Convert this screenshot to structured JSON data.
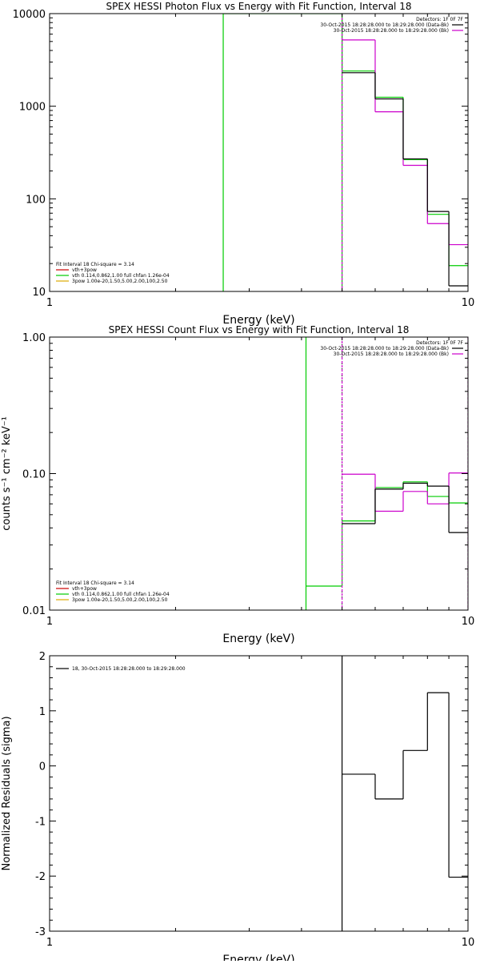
{
  "chart_data": [
    {
      "type": "line",
      "title": "SPEX HESSI Photon Flux vs Energy with Fit Function, Interval 18",
      "xlabel": "Energy (keV)",
      "ylabel": "",
      "xscale": "log",
      "yscale": "log",
      "xlim": [
        1,
        10
      ],
      "ylim": [
        10,
        10000
      ],
      "xticks": [
        {
          "v": 1,
          "label": "1"
        },
        {
          "v": 10,
          "label": "10"
        }
      ],
      "yticks": [
        {
          "v": 10,
          "label": "10"
        },
        {
          "v": 100,
          "label": "100"
        },
        {
          "v": 1000,
          "label": "1000"
        },
        {
          "v": 10000,
          "label": "10000"
        }
      ],
      "header_lines": [
        {
          "text": "Detectors: 1F 0F 7F",
          "color": ""
        },
        {
          "text": "30-Oct-2015 18:28:28.000 to 18:29:28.000 (Data-Bk)",
          "color": "#000000"
        },
        {
          "text": "30-Oct-2015 18:28:28.000 to 18:29:28.000 (Bk)",
          "color": "#cc00cc"
        }
      ],
      "legend_lines": [
        {
          "text": "Fit Interval 18   Chi-square = 3.14",
          "color": ""
        },
        {
          "text": "vth+3pow",
          "color": "#cc0000"
        },
        {
          "text": "vth 0.114,0.862,1.00  full chfan 1.26e-04",
          "color": "#00cc00"
        },
        {
          "text": "3pow 1.00e-20,1.50,5.00,2.00,100,2.50",
          "color": "#ddaa00"
        }
      ],
      "legend_position": "bottom-left",
      "series": [
        {
          "color": "#00cc00",
          "verticals": [
            2.6,
            5.0
          ],
          "bins": [
            {
              "x0": 2.6,
              "x1": 4.1,
              "y": 10000
            },
            {
              "x0": 4.1,
              "x1": 5.0,
              "y": 10000
            },
            {
              "x0": 5.0,
              "x1": 6.0,
              "y": 2400
            },
            {
              "x0": 6.0,
              "x1": 7.0,
              "y": 1250
            },
            {
              "x0": 7.0,
              "x1": 8.0,
              "y": 265
            },
            {
              "x0": 8.0,
              "x1": 9.0,
              "y": 68
            },
            {
              "x0": 9.0,
              "x1": 10.0,
              "y": 19
            }
          ]
        },
        {
          "color": "#cc00cc",
          "verticals": [
            5.0
          ],
          "bins": [
            {
              "x0": 5.0,
              "x1": 6.0,
              "y": 5200
            },
            {
              "x0": 6.0,
              "x1": 7.0,
              "y": 870
            },
            {
              "x0": 7.0,
              "x1": 8.0,
              "y": 230
            },
            {
              "x0": 8.0,
              "x1": 9.0,
              "y": 54
            },
            {
              "x0": 9.0,
              "x1": 10.0,
              "y": 32
            }
          ]
        },
        {
          "color": "#000000",
          "bins": [
            {
              "x0": 5.0,
              "x1": 6.0,
              "y": 2300
            },
            {
              "x0": 6.0,
              "x1": 7.0,
              "y": 1200
            },
            {
              "x0": 7.0,
              "x1": 8.0,
              "y": 270
            },
            {
              "x0": 8.0,
              "x1": 9.0,
              "y": 73
            },
            {
              "x0": 9.0,
              "x1": 10.0,
              "y": 11.5
            }
          ]
        }
      ],
      "dotted_vlines": []
    },
    {
      "type": "line",
      "title": "SPEX HESSI Count Flux vs Energy with Fit Function, Interval 18",
      "xlabel": "Energy (keV)",
      "ylabel": "counts s⁻¹ cm⁻² keV⁻¹",
      "xscale": "log",
      "yscale": "log",
      "xlim": [
        1,
        10
      ],
      "ylim": [
        0.01,
        1.0
      ],
      "xticks": [
        {
          "v": 1,
          "label": "1"
        },
        {
          "v": 10,
          "label": "10"
        }
      ],
      "yticks": [
        {
          "v": 0.01,
          "label": "0.01"
        },
        {
          "v": 0.1,
          "label": "0.10"
        },
        {
          "v": 1.0,
          "label": "1.00"
        }
      ],
      "header_lines": [
        {
          "text": "Detectors: 1F 0F 7F",
          "color": ""
        },
        {
          "text": "30-Oct-2015 18:28:28.000 to 18:29:28.000 (Data-Bk)",
          "color": "#000000"
        },
        {
          "text": "30-Oct-2015 18:28:28.000 to 18:29:28.000 (Bk)",
          "color": "#cc00cc"
        }
      ],
      "legend_lines": [
        {
          "text": "Fit Interval 18   Chi-square = 3.14",
          "color": ""
        },
        {
          "text": "vth+3pow",
          "color": "#cc0000"
        },
        {
          "text": "vth 0.114,0.862,1.00  full chfan 1.26e-04",
          "color": "#00cc00"
        },
        {
          "text": "3pow 1.00e-20,1.50,5.00,2.00,100,2.50",
          "color": "#ddaa00"
        }
      ],
      "legend_position": "bottom-left",
      "series": [
        {
          "color": "#00cc00",
          "verticals": [
            4.1
          ],
          "bins": [
            {
              "x0": 4.1,
              "x1": 5.0,
              "y": 0.015
            },
            {
              "x0": 5.0,
              "x1": 6.0,
              "y": 0.045
            },
            {
              "x0": 6.0,
              "x1": 7.0,
              "y": 0.079
            },
            {
              "x0": 7.0,
              "x1": 8.0,
              "y": 0.087
            },
            {
              "x0": 8.0,
              "x1": 9.0,
              "y": 0.068
            },
            {
              "x0": 9.0,
              "x1": 10.0,
              "y": 0.061
            }
          ]
        },
        {
          "color": "#cc00cc",
          "verticals": [
            5.0,
            10.0
          ],
          "bins": [
            {
              "x0": 5.0,
              "x1": 6.0,
              "y": 0.099
            },
            {
              "x0": 6.0,
              "x1": 7.0,
              "y": 0.053
            },
            {
              "x0": 7.0,
              "x1": 8.0,
              "y": 0.074
            },
            {
              "x0": 8.0,
              "x1": 9.0,
              "y": 0.06
            },
            {
              "x0": 9.0,
              "x1": 10.0,
              "y": 0.101
            }
          ]
        },
        {
          "color": "#000000",
          "bins": [
            {
              "x0": 5.0,
              "x1": 6.0,
              "y": 0.043
            },
            {
              "x0": 6.0,
              "x1": 7.0,
              "y": 0.077
            },
            {
              "x0": 7.0,
              "x1": 8.0,
              "y": 0.085
            },
            {
              "x0": 8.0,
              "x1": 9.0,
              "y": 0.081
            },
            {
              "x0": 9.0,
              "x1": 10.0,
              "y": 0.037
            }
          ]
        }
      ],
      "dotted_vlines": [
        5.0
      ]
    },
    {
      "type": "line",
      "title": "",
      "xlabel": "Energy (keV)",
      "ylabel": "Normalized Residuals (sigma)",
      "xscale": "log",
      "yscale": "linear",
      "xlim": [
        1,
        10
      ],
      "ylim": [
        -3,
        2
      ],
      "xticks": [
        {
          "v": 1,
          "label": "1"
        },
        {
          "v": 10,
          "label": "10"
        }
      ],
      "yticks": [
        {
          "v": -3,
          "label": "-3"
        },
        {
          "v": -2,
          "label": "-2"
        },
        {
          "v": -1,
          "label": "-1"
        },
        {
          "v": 0,
          "label": "0"
        },
        {
          "v": 1,
          "label": "1"
        },
        {
          "v": 2,
          "label": "2"
        }
      ],
      "header_lines": [],
      "legend_lines": [
        {
          "text": "18, 30-Oct-2015 18:28:28.000 to 18:29:28.000",
          "color": "#000000"
        }
      ],
      "legend_position": "top-left",
      "series": [
        {
          "color": "#000000",
          "verticals": [
            5.0
          ],
          "bins": [
            {
              "x0": 5.0,
              "x1": 6.0,
              "y": -0.15
            },
            {
              "x0": 6.0,
              "x1": 7.0,
              "y": -0.6
            },
            {
              "x0": 7.0,
              "x1": 8.0,
              "y": 0.28
            },
            {
              "x0": 8.0,
              "x1": 9.0,
              "y": 1.33
            },
            {
              "x0": 9.0,
              "x1": 10.0,
              "y": -2.02
            }
          ]
        }
      ],
      "dotted_vlines": []
    }
  ]
}
